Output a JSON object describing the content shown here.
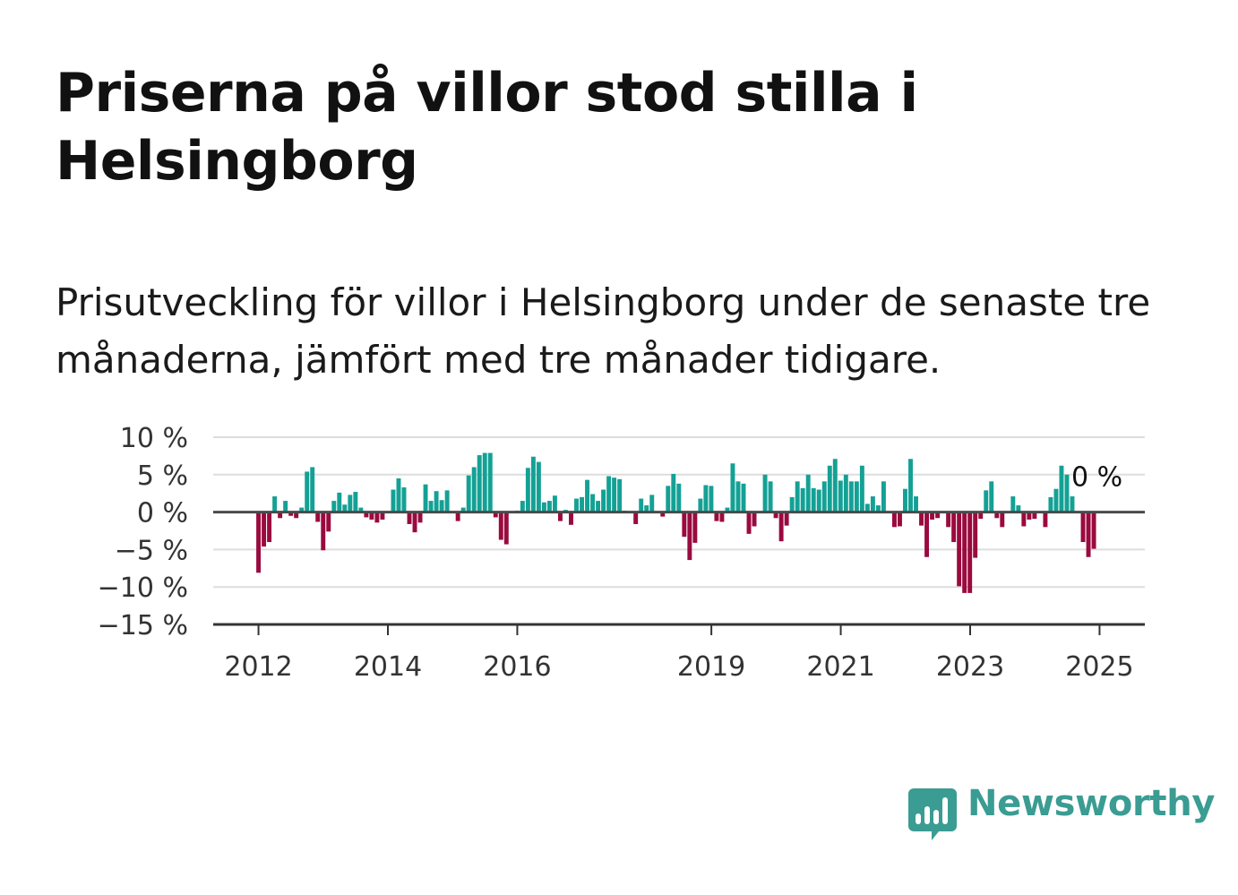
{
  "title": "Priserna på villor stod stilla i Helsingborg",
  "subtitle": "Prisutveckling för villor i Helsingborg under de senaste tre månaderna, jämfört med tre månader tidigare.",
  "brand": {
    "name": "Newsworthy",
    "color": "#3a9c92",
    "icon": "newsworthy-bar-chart-icon"
  },
  "colors": {
    "positive": "#14a195",
    "negative": "#9a0a3e",
    "zero_line": "#4a4a4a",
    "grid": "#dddddd"
  },
  "chart_data": {
    "type": "bar",
    "x_start": 2012.0,
    "x_step_years": 0.0833,
    "values": [
      -8.1,
      -4.6,
      -4.0,
      2.1,
      -0.8,
      1.5,
      -0.5,
      -0.8,
      0.6,
      5.4,
      6.0,
      -1.3,
      -5.1,
      -2.6,
      1.5,
      2.6,
      1.0,
      2.3,
      2.7,
      0.6,
      -0.7,
      -1.0,
      -1.4,
      -1.0,
      0.1,
      3.0,
      4.5,
      3.3,
      -1.6,
      -2.7,
      -1.4,
      3.7,
      1.5,
      2.8,
      1.6,
      2.9,
      0.0,
      -1.2,
      0.6,
      4.9,
      6.0,
      7.6,
      7.9,
      7.9,
      -0.7,
      -3.7,
      -4.3,
      0.1,
      0.2,
      1.5,
      5.9,
      7.4,
      6.7,
      1.3,
      1.5,
      2.2,
      -1.2,
      0.3,
      -1.7,
      1.8,
      2.0,
      4.3,
      2.4,
      1.5,
      3.0,
      4.8,
      4.6,
      4.4,
      0.2,
      -0.1,
      -1.6,
      1.8,
      0.9,
      2.3,
      0.0,
      -0.6,
      3.5,
      5.1,
      3.8,
      -3.3,
      -6.4,
      -4.1,
      1.8,
      3.6,
      3.5,
      -1.2,
      -1.3,
      0.6,
      6.5,
      4.1,
      3.8,
      -2.9,
      -1.9,
      -0.1,
      5.0,
      4.1,
      -0.8,
      -3.9,
      -1.8,
      2.0,
      4.1,
      3.2,
      5.0,
      3.2,
      3.0,
      4.1,
      6.2,
      7.1,
      4.2,
      5.0,
      4.1,
      4.1,
      6.2,
      1.1,
      2.1,
      0.9,
      4.1,
      0.0,
      -2.0,
      -1.9,
      3.1,
      7.1,
      2.1,
      -1.8,
      -6.0,
      -1.0,
      -0.8,
      -0.1,
      -2.0,
      -4.0,
      -9.9,
      -10.8,
      -10.8,
      -6.1,
      -0.9,
      2.9,
      4.1,
      -0.8,
      -2.0,
      0.0,
      2.1,
      0.9,
      -1.9,
      -1.0,
      -0.9,
      -0.1,
      -2.0,
      2.0,
      3.1,
      6.2,
      5.0,
      2.1,
      0.0,
      -4.0,
      -6.0,
      -4.9
    ],
    "annotation": "0 %",
    "y_ticks": [
      10,
      5,
      0,
      -5,
      -10,
      -15
    ],
    "y_tick_labels": [
      "10 %",
      "5 %",
      "0 %",
      "−5 %",
      "−10 %",
      "−15 %"
    ],
    "x_ticks": [
      2012,
      2014,
      2016,
      2019,
      2021,
      2023,
      2025
    ],
    "x_tick_labels": [
      "2012",
      "2014",
      "2016",
      "2019",
      "2021",
      "2023",
      "2025"
    ],
    "ylim": [
      -15,
      10
    ],
    "xlim": [
      2011.3,
      2025.7
    ],
    "grid": true,
    "xlabel": "",
    "ylabel": ""
  }
}
